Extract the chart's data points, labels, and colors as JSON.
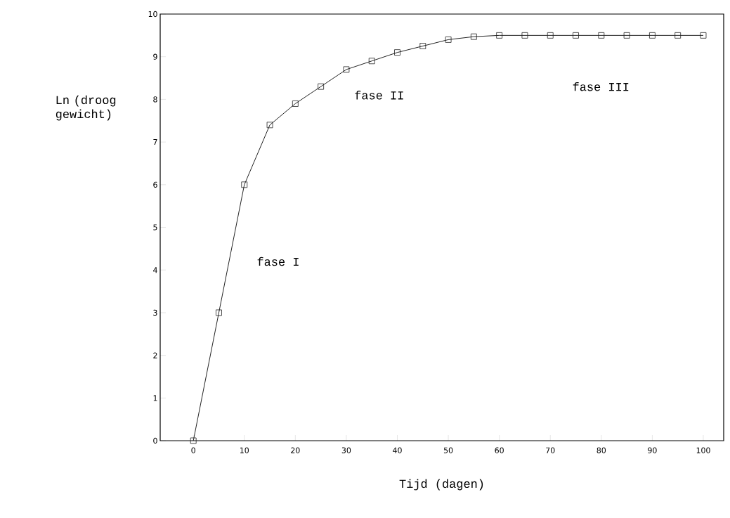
{
  "chart_data": {
    "type": "line",
    "xlabel": "Tijd (dagen)",
    "ylabel": "Ln (droog gewicht)",
    "x": [
      0,
      5,
      10,
      15,
      20,
      25,
      30,
      35,
      40,
      45,
      50,
      55,
      60,
      65,
      70,
      75,
      80,
      85,
      90,
      95,
      100
    ],
    "values": [
      0,
      3.0,
      6.0,
      7.4,
      7.9,
      8.3,
      8.7,
      8.9,
      9.1,
      9.25,
      9.4,
      9.47,
      9.5,
      9.5,
      9.5,
      9.5,
      9.5,
      9.5,
      9.5,
      9.5,
      9.5
    ],
    "color": "#222222",
    "marker": "square",
    "line_style": "solid",
    "grid": false,
    "xlim": [
      -6.5,
      104
    ],
    "ylim": [
      0,
      10
    ],
    "xticks": [
      0,
      10,
      20,
      30,
      40,
      50,
      60,
      70,
      80,
      90,
      100
    ],
    "yticks": [
      0,
      1,
      2,
      3,
      4,
      5,
      6,
      7,
      8,
      9,
      10
    ],
    "annotations": [
      "fase I",
      "fase II",
      "fase III"
    ]
  }
}
